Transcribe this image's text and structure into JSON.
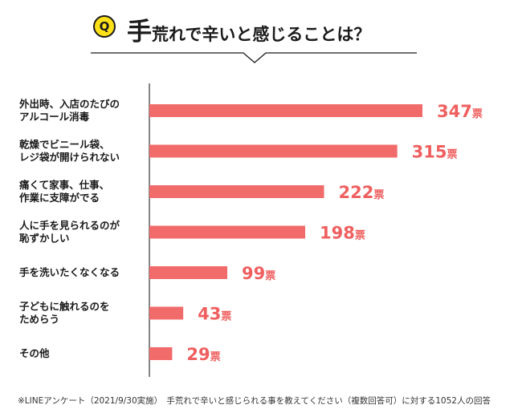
{
  "header": {
    "badge": "Q",
    "title_lead": "手",
    "title_rest": "荒れで辛いと感じることは？"
  },
  "chart_data": {
    "type": "bar",
    "orientation": "horizontal",
    "categories": [
      [
        "外出時、入店のたびの",
        "アルコール消毒"
      ],
      [
        "乾燥でビニール袋、",
        "レジ袋が開けられない"
      ],
      [
        "痛くて家事、仕事、",
        "作業に支障がでる"
      ],
      [
        "人に手を見られるのが",
        "恥ずかしい"
      ],
      [
        "手を洗いたくなくなる"
      ],
      [
        "子どもに触れるのを",
        "ためらう"
      ],
      [
        "その他"
      ]
    ],
    "values": [
      347,
      315,
      222,
      198,
      99,
      43,
      29
    ],
    "value_unit": "票",
    "bar_color": "#f26b6b",
    "label_color": "#ef5f5f",
    "xlim": [
      0,
      350
    ],
    "grid": false,
    "legend": "none"
  },
  "footnote": "※LINEアンケート（2021/9/30実施）　手荒れで辛いと感じられる事を教えてください（複数回答可）に対する1052人の回答"
}
